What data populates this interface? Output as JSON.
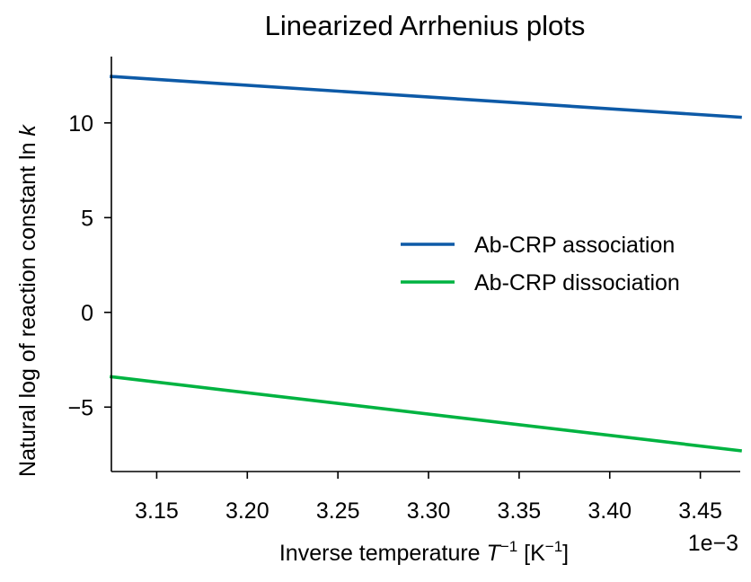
{
  "chart_data": {
    "type": "line",
    "title": "Linearized Arrhenius plots",
    "xlabel": {
      "prefix": "Inverse temperature ",
      "var": "T",
      "exp": "−1",
      "bracket_open": " [K",
      "unit_exp": "−1",
      "bracket_close": "]"
    },
    "ylabel": {
      "prefix": "Natural log of reaction constant ln ",
      "var": "k"
    },
    "x_offset_text": "1e−3",
    "x_scale": 0.001,
    "xlim": [
      3.125,
      3.472
    ],
    "ylim": [
      -8.4,
      13.5
    ],
    "xticks": [
      {
        "value": 3.15,
        "label": "3.15"
      },
      {
        "value": 3.2,
        "label": "3.20"
      },
      {
        "value": 3.25,
        "label": "3.25"
      },
      {
        "value": 3.3,
        "label": "3.30"
      },
      {
        "value": 3.35,
        "label": "3.35"
      },
      {
        "value": 3.4,
        "label": "3.40"
      },
      {
        "value": 3.45,
        "label": "3.45"
      }
    ],
    "yticks": [
      {
        "value": 10,
        "label": "10"
      },
      {
        "value": 5,
        "label": "5"
      },
      {
        "value": 0,
        "label": "0"
      },
      {
        "value": -5,
        "label": "−5"
      }
    ],
    "legend_position": "center-right",
    "grid": false,
    "series": [
      {
        "name": "Ab-CRP association",
        "color": "#0d5aa7",
        "x": [
          3.125,
          3.472
        ],
        "y": [
          12.45,
          10.3
        ]
      },
      {
        "name": "Ab-CRP dissociation",
        "color": "#00b341",
        "x": [
          3.125,
          3.472
        ],
        "y": [
          -3.4,
          -7.3
        ]
      }
    ]
  }
}
